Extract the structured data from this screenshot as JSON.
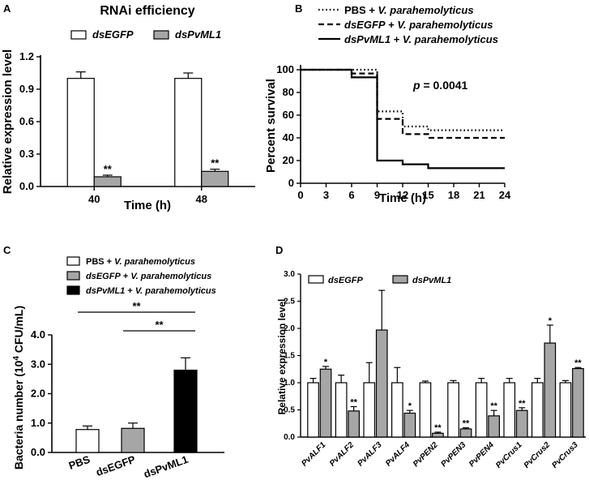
{
  "chart_data": [
    {
      "panel": "A",
      "type": "bar",
      "title": "RNAi efficiency",
      "xlabel": "Time (h)",
      "ylabel": "Relative expression level",
      "categories": [
        "40",
        "48"
      ],
      "ylim": [
        0,
        1.2
      ],
      "yticks": [
        "0.0",
        "0.3",
        "0.6",
        "0.9",
        "1.2"
      ],
      "series": [
        {
          "name": "dsEGFP",
          "color": "#ffffff",
          "values": [
            1.0,
            1.0
          ],
          "errors": [
            0.06,
            0.05
          ]
        },
        {
          "name": "dsPvML1",
          "color": "#a6a6a6",
          "values": [
            0.09,
            0.14
          ],
          "errors": [
            0.015,
            0.02
          ]
        }
      ],
      "significance": [
        {
          "series": 1,
          "category": 0,
          "label": "**"
        },
        {
          "series": 1,
          "category": 1,
          "label": "**"
        }
      ]
    },
    {
      "panel": "B",
      "type": "line",
      "title": "",
      "xlabel": "Time (h)",
      "ylabel": "Percent survival",
      "xlim": [
        0,
        24
      ],
      "ylim": [
        0,
        100
      ],
      "xticks": [
        "0",
        "3",
        "6",
        "9",
        "12",
        "15",
        "18",
        "21",
        "24"
      ],
      "yticks": [
        "0",
        "20",
        "40",
        "60",
        "80",
        "100"
      ],
      "annotation": {
        "p_label": "p",
        "p_value": "= 0.0041"
      },
      "series": [
        {
          "name_prefix": "PBS + ",
          "name_italic": "V. parahemolyticus",
          "style": "dotted",
          "points": [
            [
              0,
              100
            ],
            [
              9,
              100
            ],
            [
              9,
              63.3
            ],
            [
              12,
              63.3
            ],
            [
              12,
              50
            ],
            [
              15,
              50
            ],
            [
              15,
              46.7
            ],
            [
              24,
              46.7
            ]
          ]
        },
        {
          "name_prefix": "dsEGFP",
          "name_italic": "V. parahemolyticus",
          "name_mid": " + ",
          "style": "dashed",
          "points": [
            [
              0,
              100
            ],
            [
              6,
              100
            ],
            [
              6,
              96.7
            ],
            [
              9,
              96.7
            ],
            [
              9,
              56.7
            ],
            [
              12,
              56.7
            ],
            [
              12,
              43.3
            ],
            [
              15,
              43.3
            ],
            [
              15,
              40
            ],
            [
              24,
              40
            ]
          ]
        },
        {
          "name_prefix": "dsPvML1",
          "name_italic": "V. parahemolyticus",
          "name_mid": " + ",
          "style": "solid",
          "points": [
            [
              0,
              100
            ],
            [
              6,
              100
            ],
            [
              6,
              93.3
            ],
            [
              9,
              93.3
            ],
            [
              9,
              20
            ],
            [
              12,
              20
            ],
            [
              12,
              16.7
            ],
            [
              15,
              16.7
            ],
            [
              15,
              13.3
            ],
            [
              24,
              13.3
            ]
          ]
        }
      ]
    },
    {
      "panel": "C",
      "type": "bar",
      "title": "",
      "xlabel": "",
      "ylabel": "Bacteria number (10",
      "ylabel_sup": "4",
      "ylabel_end": " CFU/mL)",
      "categories": [
        "PBS",
        "dsEGFP",
        "dsPvML1"
      ],
      "ylim": [
        0,
        4
      ],
      "yticks": [
        "0.0",
        "1.0",
        "2.0",
        "3.0",
        "4.0"
      ],
      "values": [
        0.78,
        0.82,
        2.8
      ],
      "errors": [
        0.12,
        0.18,
        0.42
      ],
      "colors": [
        "#ffffff",
        "#a6a6a6",
        "#000000"
      ],
      "legend": [
        {
          "prefix": "PBS + ",
          "italic": "V. parahemolyticus"
        },
        {
          "prefix": "dsEGFP + ",
          "italic": "V. parahemolyticus"
        },
        {
          "prefix": "dsPvML1 + ",
          "italic": "V. parahemolyticus"
        }
      ],
      "brackets": [
        {
          "from": 0,
          "to": 2,
          "label": "**"
        },
        {
          "from": 1,
          "to": 2,
          "label": "**"
        }
      ]
    },
    {
      "panel": "D",
      "type": "bar",
      "title": "",
      "xlabel": "",
      "ylabel": "Relative expression level",
      "categories": [
        "PvALF1",
        "PvALF2",
        "PvALF3",
        "PvALF4",
        "PvPEN2",
        "PvPEN3",
        "PvPEN4",
        "PvCrus1",
        "PvCrus2",
        "PvCrus3"
      ],
      "ylim": [
        0,
        3.0
      ],
      "yticks": [
        "0.0",
        "0.5",
        "1.0",
        "1.5",
        "2.0",
        "2.5",
        "3.0"
      ],
      "series": [
        {
          "name": "dsEGFP",
          "color": "#ffffff",
          "values": [
            1.0,
            1.0,
            1.0,
            1.0,
            1.0,
            1.0,
            1.0,
            1.0,
            1.0,
            1.0
          ],
          "errors": [
            0.08,
            0.14,
            0.37,
            0.28,
            0.03,
            0.04,
            0.08,
            0.08,
            0.08,
            0.04
          ]
        },
        {
          "name": "dsPvML1",
          "color": "#a6a6a6",
          "values": [
            1.25,
            0.48,
            1.97,
            0.44,
            0.07,
            0.15,
            0.39,
            0.49,
            1.73,
            1.26
          ],
          "errors": [
            0.05,
            0.08,
            0.73,
            0.05,
            0.02,
            0.02,
            0.1,
            0.05,
            0.33,
            0.02
          ]
        }
      ],
      "significance": [
        "*",
        "**",
        "",
        "*",
        "**",
        "**",
        "**",
        "**",
        "*",
        "**"
      ]
    }
  ],
  "panel_letters": [
    "A",
    "B",
    "C",
    "D"
  ],
  "colors": {
    "grey": "#a6a6a6",
    "black": "#000000",
    "white": "#ffffff"
  }
}
